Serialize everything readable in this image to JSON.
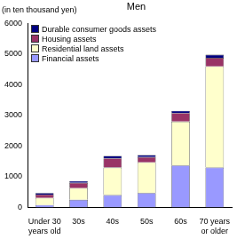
{
  "chart_data": {
    "type": "bar",
    "title": "Men",
    "y_label": "(in ten thousand yen)",
    "categories": [
      "Under 30 years old",
      "30s",
      "40s",
      "50s",
      "60s",
      "70 years or older"
    ],
    "series": [
      {
        "name": "Financial assets",
        "color": "#9999ff",
        "values": [
          80,
          250,
          400,
          470,
          1370,
          1300
        ]
      },
      {
        "name": "Residential land assets",
        "color": "#ffffcc",
        "values": [
          230,
          380,
          900,
          1000,
          1430,
          3300
        ]
      },
      {
        "name": "Housing assets",
        "color": "#993366",
        "values": [
          110,
          170,
          300,
          170,
          280,
          280
        ]
      },
      {
        "name": "Durable consumer goods assets",
        "color": "#000080",
        "values": [
          50,
          60,
          80,
          70,
          70,
          100
        ]
      }
    ],
    "stacked": true,
    "ylim": [
      0,
      6000
    ],
    "yticks": [
      0,
      1000,
      2000,
      3000,
      4000,
      5000,
      6000
    ],
    "grid": false,
    "legend": "upper left"
  }
}
